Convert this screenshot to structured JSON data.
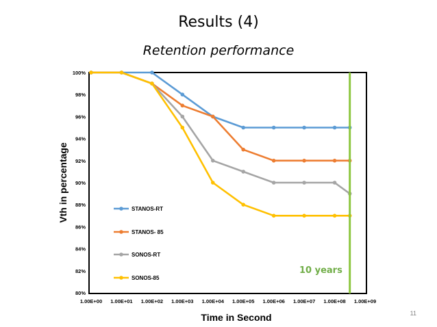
{
  "slide": {
    "title": "Results (4)",
    "subtitle": "Retention performance",
    "page_number": "11"
  },
  "colors": {
    "stanos_rt": "#5B9BD5",
    "stanos_85": "#ED7D31",
    "sonos_rt": "#A5A5A5",
    "sonos_85": "#FFC000",
    "marker_line": "#8CC63F",
    "annotation": "#70AD47"
  },
  "chart_data": {
    "type": "line",
    "title": "",
    "xlabel": "Time in Second",
    "ylabel": "Vth in percentage",
    "x_scale": "log",
    "x_categories": [
      "1.00E+00",
      "1.00E+01",
      "1.00E+02",
      "1.00E+03",
      "1.00E+04",
      "1.00E+05",
      "1.00E+06",
      "1.00E+07",
      "1.00E+08",
      "1.00E+09"
    ],
    "y_ticks": [
      "80%",
      "82%",
      "84%",
      "86%",
      "88%",
      "90%",
      "92%",
      "94%",
      "96%",
      "98%",
      "100%"
    ],
    "ylim": [
      80,
      100
    ],
    "xlim": [
      1,
      1000000000
    ],
    "grid": false,
    "legend_position": "left",
    "series": [
      {
        "name": "STANOS-RT",
        "color": "#5B9BD5",
        "points": [
          [
            1,
            100
          ],
          [
            10,
            100
          ],
          [
            100,
            100
          ],
          [
            1000,
            98
          ],
          [
            10000,
            96
          ],
          [
            100000,
            95
          ],
          [
            1000000,
            95
          ],
          [
            10000000,
            95
          ],
          [
            100000000,
            95
          ],
          [
            315000000,
            95
          ]
        ]
      },
      {
        "name": "STANOS- 85",
        "color": "#ED7D31",
        "points": [
          [
            1,
            100
          ],
          [
            10,
            100
          ],
          [
            100,
            99
          ],
          [
            1000,
            97
          ],
          [
            10000,
            96
          ],
          [
            100000,
            93
          ],
          [
            1000000,
            92
          ],
          [
            10000000,
            92
          ],
          [
            100000000,
            92
          ],
          [
            315000000,
            92
          ]
        ]
      },
      {
        "name": "SONOS-RT",
        "color": "#A5A5A5",
        "points": [
          [
            1,
            100
          ],
          [
            10,
            100
          ],
          [
            100,
            99
          ],
          [
            1000,
            96
          ],
          [
            10000,
            92
          ],
          [
            100000,
            91
          ],
          [
            1000000,
            90
          ],
          [
            10000000,
            90
          ],
          [
            100000000,
            90
          ],
          [
            315000000,
            89
          ]
        ]
      },
      {
        "name": "SONOS-85",
        "color": "#FFC000",
        "points": [
          [
            1,
            100
          ],
          [
            10,
            100
          ],
          [
            100,
            99
          ],
          [
            1000,
            95
          ],
          [
            10000,
            90
          ],
          [
            100000,
            88
          ],
          [
            1000000,
            87
          ],
          [
            10000000,
            87
          ],
          [
            100000000,
            87
          ],
          [
            315000000,
            87
          ]
        ]
      }
    ],
    "annotations": [
      {
        "text": "10 years",
        "x": 315000000
      }
    ]
  }
}
